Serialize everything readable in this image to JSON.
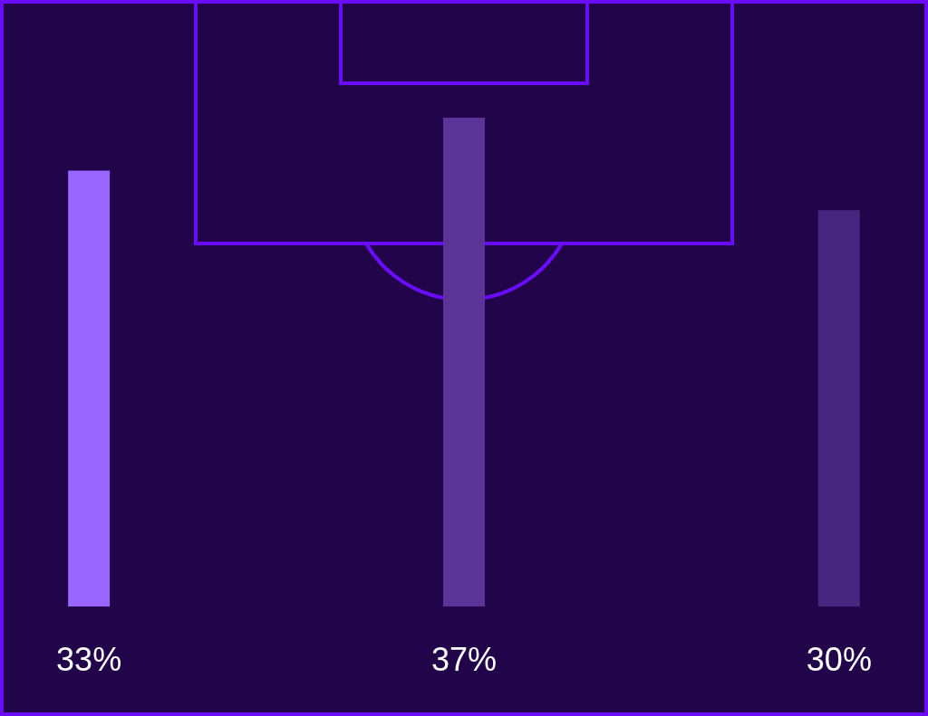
{
  "chart_data": {
    "type": "bar",
    "categories": [
      null,
      null,
      null
    ],
    "values": [
      33,
      37,
      30
    ],
    "colors": [
      "#9966ff",
      "#5c3399",
      "#472680"
    ],
    "value_labels": [
      "33%",
      "37%",
      "30%"
    ]
  }
}
